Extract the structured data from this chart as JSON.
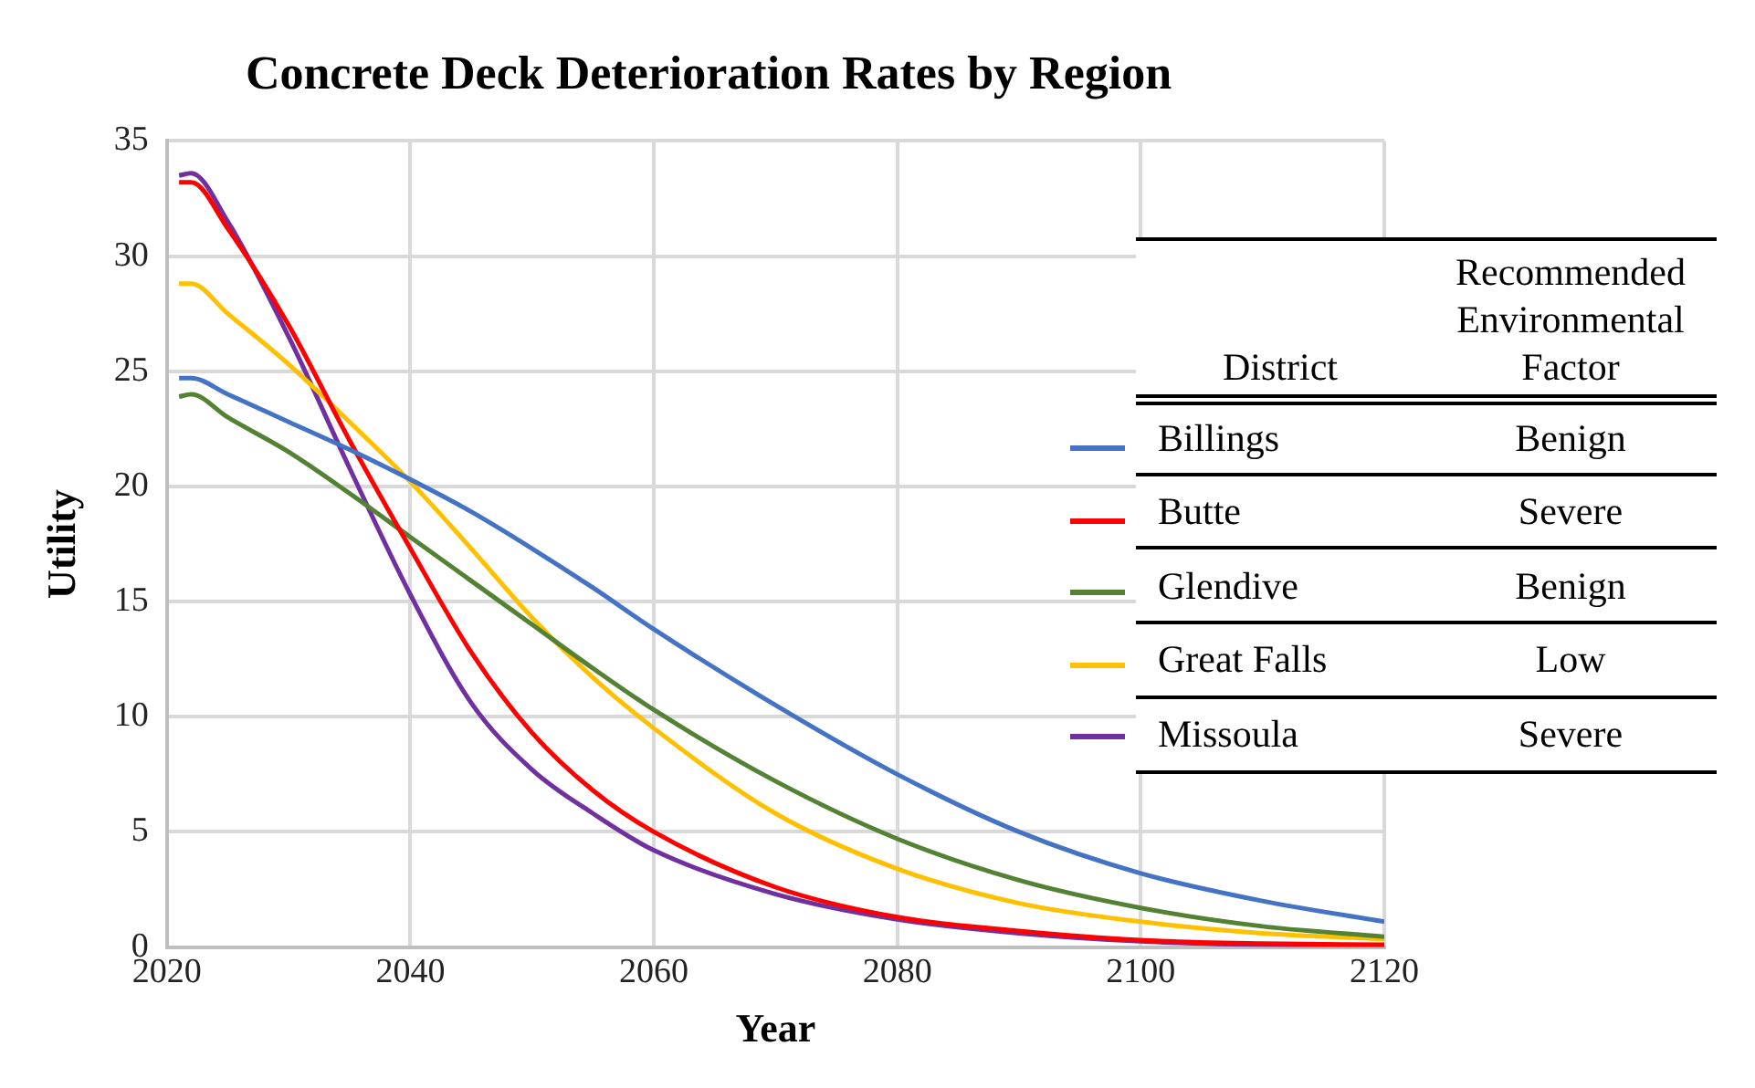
{
  "chart_data": {
    "type": "line",
    "title": "Concrete Deck Deterioration Rates by Region",
    "xlabel": "Year",
    "ylabel": "Utility",
    "xlim": [
      2020,
      2120
    ],
    "xticks": [
      2020,
      2040,
      2060,
      2080,
      2100,
      2120
    ],
    "ylim": [
      0,
      35
    ],
    "yticks": [
      0,
      5,
      10,
      15,
      20,
      25,
      30,
      35
    ],
    "grid": true,
    "legend": "right",
    "legend_title": "District",
    "marker": "none",
    "line_style": "solid",
    "annotations": [
      "Recommended Environmental Factor",
      "Benign",
      "Severe",
      "Benign",
      "Low",
      "Severe"
    ],
    "x": [
      2021,
      2022,
      2025,
      2030,
      2035,
      2040,
      2045,
      2050,
      2055,
      2060,
      2070,
      2080,
      2090,
      2100,
      2110,
      2120
    ],
    "series": [
      {
        "name": "Billings",
        "color": "#4472c4",
        "values": [
          24.7,
          24.7,
          24.0,
          22.8,
          21.6,
          20.3,
          18.9,
          17.3,
          15.6,
          13.8,
          10.5,
          7.5,
          5.0,
          3.2,
          2.0,
          1.1
        ]
      },
      {
        "name": "Butte",
        "color": "#ff0000",
        "values": [
          33.2,
          33.2,
          31.2,
          27.0,
          22.0,
          17.3,
          12.8,
          9.3,
          6.8,
          5.0,
          2.6,
          1.3,
          0.7,
          0.3,
          0.15,
          0.1
        ]
      },
      {
        "name": "Glendive",
        "color": "#548235",
        "values": [
          23.9,
          24.0,
          23.0,
          21.5,
          19.7,
          17.8,
          15.9,
          14.0,
          12.1,
          10.3,
          7.2,
          4.7,
          2.9,
          1.7,
          0.9,
          0.45
        ]
      },
      {
        "name": "Great Falls",
        "color": "#ffc000",
        "values": [
          28.8,
          28.8,
          27.5,
          25.3,
          22.8,
          20.2,
          17.3,
          14.3,
          11.7,
          9.5,
          5.8,
          3.4,
          1.9,
          1.1,
          0.6,
          0.35
        ]
      },
      {
        "name": "Missoula",
        "color": "#7030a0",
        "values": [
          33.5,
          33.6,
          31.5,
          26.5,
          20.8,
          15.3,
          10.6,
          7.7,
          5.8,
          4.2,
          2.3,
          1.2,
          0.6,
          0.25,
          0.1,
          0.05
        ]
      }
    ]
  }
}
